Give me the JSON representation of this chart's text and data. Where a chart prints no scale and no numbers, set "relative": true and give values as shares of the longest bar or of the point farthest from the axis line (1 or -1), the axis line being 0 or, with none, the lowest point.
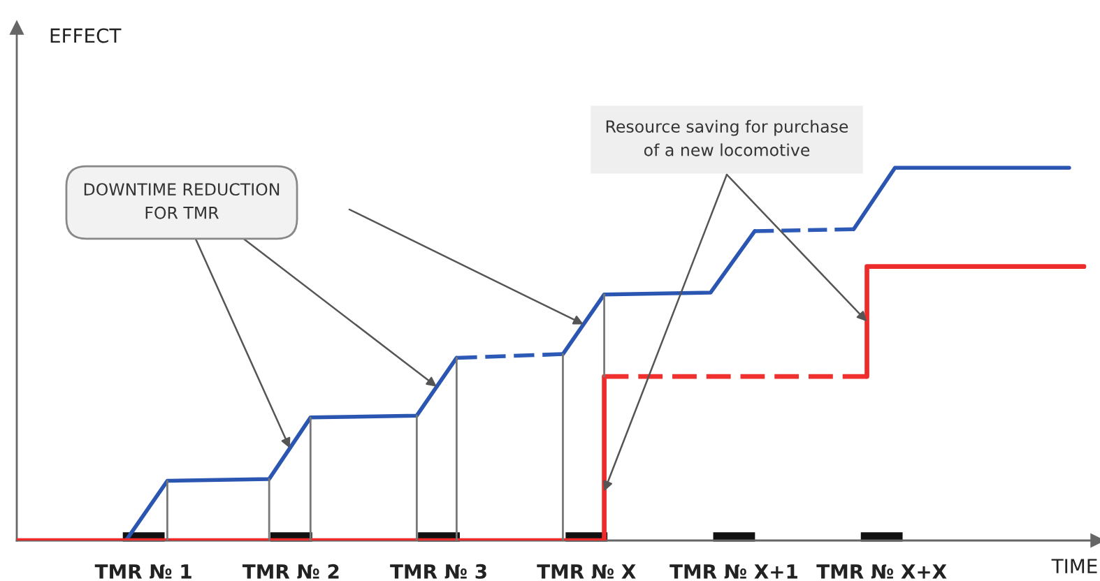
{
  "chart_data": {
    "type": "line",
    "relative": true,
    "xlabel": "TIME",
    "annotations": [
      "EFFECT",
      "DOWNTIME REDUCTION\nFOR TMR",
      "Resource saving for purchase\nof a new locomotive"
    ],
    "xlim": [
      0.14,
      7.46
    ],
    "xticks": [
      {
        "value": 1,
        "label": "TMR № 1"
      },
      {
        "value": 2,
        "label": "TMR № 2"
      },
      {
        "value": 3,
        "label": "TMR № 3"
      },
      {
        "value": 4,
        "label": "TMR № X"
      },
      {
        "value": 5,
        "label": "TMR № X+1"
      },
      {
        "value": 6,
        "label": "TMR № X+X"
      }
    ],
    "grid": false,
    "legend": false,
    "series": [
      {
        "color": "#2a55b0",
        "line_style": "solid",
        "x": [
          0.88,
          1.16,
          1.85,
          2.13,
          2.85,
          3.12,
          3.5,
          3.84,
          4.12,
          4.84,
          5.14,
          5.5,
          5.81,
          6.09,
          7.27
        ],
        "values": [
          0,
          0.16,
          0.165,
          0.33,
          0.335,
          0.49,
          null,
          0.5,
          0.66,
          0.665,
          0.83,
          null,
          0.835,
          1,
          1
        ]
      },
      {
        "color": "#2c5ab6",
        "line_style": "dashed",
        "x": [
          3.12,
          3.84
        ],
        "values": [
          0.49,
          0.5
        ]
      },
      {
        "color": "#2c5ab6",
        "line_style": "dashed",
        "x": [
          5.14,
          5.81
        ],
        "values": [
          0.83,
          0.835
        ]
      },
      {
        "color": "#ee2b2b",
        "line_style": "solid",
        "x": [
          0.14,
          4.12,
          4.12,
          5.0,
          5.9,
          5.9,
          7.37
        ],
        "values": [
          0,
          0,
          0.44,
          null,
          0.44,
          0.735,
          0.735
        ]
      },
      {
        "color": "#f0302e",
        "line_style": "dashed",
        "x": [
          4.12,
          5.9
        ],
        "values": [
          0.44,
          0.44
        ]
      },
      {
        "color": "#777777",
        "line_style": "solid",
        "x": [
          1.16,
          1.16,
          1.5,
          1.85,
          1.85,
          2.0,
          2.13,
          2.13,
          2.5,
          2.85,
          2.85,
          3.0,
          3.12,
          3.12,
          3.5,
          3.84,
          3.84,
          4.0,
          4.12,
          4.12
        ],
        "values": [
          0,
          0.16,
          null,
          0,
          0.165,
          null,
          0,
          0.33,
          null,
          0,
          0.335,
          null,
          0,
          0.49,
          null,
          0,
          0.5,
          null,
          0.44,
          0.66
        ]
      }
    ]
  }
}
